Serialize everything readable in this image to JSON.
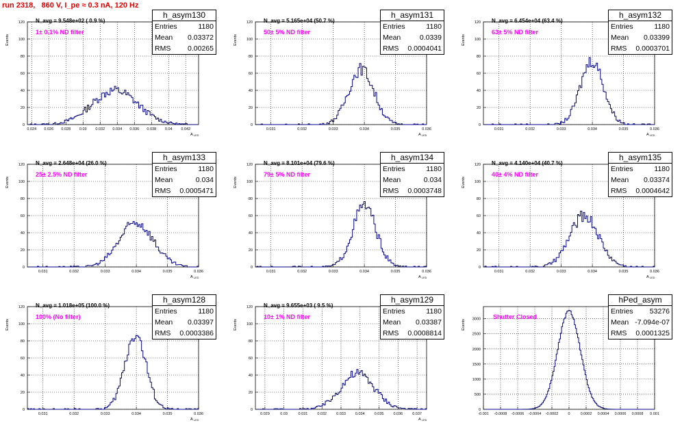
{
  "title": "run 2318,   860 V, I_pe ≈ 0.3 nA, 120 Hz",
  "colors": {
    "title": "#e00000",
    "histogram": "#000080",
    "filter_text": "#ff00ff"
  },
  "chart_data": [
    {
      "type": "histogram",
      "name": "h_asym130",
      "stats": {
        "entries_label": "Entries",
        "entries": "1180",
        "mean_label": "Mean",
        "mean": "0.03372",
        "rms_label": "RMS",
        "rms": "0.00265"
      },
      "navg": "N_avg = 9.548e+02 ( 0.9 %)",
      "filter": "1± 0.1% ND filter",
      "ylabel": "Events",
      "xlabel": "A",
      "xlabel_sub": "LED",
      "xlim": [
        0.0235,
        0.0435
      ],
      "ylim": [
        0,
        120
      ],
      "xticks": [
        "0.024",
        "0.026",
        "0.028",
        "0.03",
        "0.032",
        "0.034",
        "0.036",
        "0.038",
        "0.04",
        "0.042"
      ],
      "xtick_values": [
        0.024,
        0.026,
        0.028,
        0.03,
        0.032,
        0.034,
        0.036,
        0.038,
        0.04,
        0.042
      ],
      "yticks": [
        "0",
        "20",
        "40",
        "60",
        "80",
        "100",
        "120"
      ],
      "grid": true,
      "mean_val": 0.03372,
      "sigma": 0.00265,
      "peak": 40,
      "bins": 120
    },
    {
      "type": "histogram",
      "name": "h_asym131",
      "stats": {
        "entries_label": "Entries",
        "entries": "1180",
        "mean_label": "Mean",
        "mean": "0.0339",
        "rms_label": "RMS",
        "rms": "0.0004041"
      },
      "navg": "N_avg = 5.165e+04 (50.7 %)",
      "filter": "50± 5% ND filter",
      "ylabel": "Events",
      "xlabel": "A",
      "xlabel_sub": "LED",
      "xlim": [
        0.0305,
        0.036
      ],
      "ylim": [
        0,
        120
      ],
      "xticks": [
        "0.031",
        "0.032",
        "0.033",
        "0.034",
        "0.035",
        "0.036"
      ],
      "xtick_values": [
        0.031,
        0.032,
        0.033,
        0.034,
        0.035,
        0.036
      ],
      "yticks": [
        "0",
        "20",
        "40",
        "60",
        "80",
        "100",
        "120"
      ],
      "grid": true,
      "mean_val": 0.0339,
      "sigma": 0.000404,
      "peak": 65,
      "bins": 120
    },
    {
      "type": "histogram",
      "name": "h_asym132",
      "stats": {
        "entries_label": "Entries",
        "entries": "1180",
        "mean_label": "Mean",
        "mean": "0.03399",
        "rms_label": "RMS",
        "rms": "0.0003701"
      },
      "navg": "N_avg = 6.454e+04 (63.4 %)",
      "filter": "63± 5% ND filter",
      "ylabel": "Events",
      "xlabel": "A",
      "xlabel_sub": "LED",
      "xlim": [
        0.0305,
        0.036
      ],
      "ylim": [
        0,
        120
      ],
      "xticks": [
        "0.031",
        "0.032",
        "0.033",
        "0.034",
        "0.035",
        "0.036"
      ],
      "xtick_values": [
        0.031,
        0.032,
        0.033,
        0.034,
        0.035,
        0.036
      ],
      "yticks": [
        "0",
        "20",
        "40",
        "60",
        "80",
        "100",
        "120"
      ],
      "grid": true,
      "mean_val": 0.03399,
      "sigma": 0.00037,
      "peak": 75,
      "bins": 120
    },
    {
      "type": "histogram",
      "name": "h_asym133",
      "stats": {
        "entries_label": "Entries",
        "entries": "1180",
        "mean_label": "Mean",
        "mean": "0.034",
        "rms_label": "RMS",
        "rms": "0.0005471"
      },
      "navg": "N_avg = 2.648e+04 (26.0 %)",
      "filter": "25± 2.5% ND filter",
      "ylabel": "Events",
      "xlabel": "A",
      "xlabel_sub": "LED",
      "xlim": [
        0.0305,
        0.036
      ],
      "ylim": [
        0,
        120
      ],
      "xticks": [
        "0.031",
        "0.032",
        "0.033",
        "0.034",
        "0.035",
        "0.036"
      ],
      "xtick_values": [
        0.031,
        0.032,
        0.033,
        0.034,
        0.035,
        0.036
      ],
      "yticks": [
        "0",
        "20",
        "40",
        "60",
        "80",
        "100",
        "120"
      ],
      "grid": true,
      "mean_val": 0.034,
      "sigma": 0.000547,
      "peak": 52,
      "bins": 120
    },
    {
      "type": "histogram",
      "name": "h_asym134",
      "stats": {
        "entries_label": "Entries",
        "entries": "1180",
        "mean_label": "Mean",
        "mean": "0.034",
        "rms_label": "RMS",
        "rms": "0.0003748"
      },
      "navg": "N_avg = 8.101e+04 (79.6 %)",
      "filter": "79± 5% ND filter",
      "ylabel": "Events",
      "xlabel": "A",
      "xlabel_sub": "LED",
      "xlim": [
        0.0305,
        0.036
      ],
      "ylim": [
        0,
        120
      ],
      "xticks": [
        "0.031",
        "0.032",
        "0.033",
        "0.034",
        "0.035",
        "0.036"
      ],
      "xtick_values": [
        0.031,
        0.032,
        0.033,
        0.034,
        0.035,
        0.036
      ],
      "yticks": [
        "0",
        "20",
        "40",
        "60",
        "80",
        "100",
        "120"
      ],
      "grid": true,
      "mean_val": 0.034,
      "sigma": 0.000375,
      "peak": 72,
      "bins": 120
    },
    {
      "type": "histogram",
      "name": "h_asym135",
      "stats": {
        "entries_label": "Entries",
        "entries": "1180",
        "mean_label": "Mean",
        "mean": "0.03374",
        "rms_label": "RMS",
        "rms": "0.0004642"
      },
      "navg": "N_avg = 4.140e+04 (40.7 %)",
      "filter": "40± 4% ND filter",
      "ylabel": "Events",
      "xlabel": "A",
      "xlabel_sub": "LED",
      "xlim": [
        0.0305,
        0.036
      ],
      "ylim": [
        0,
        120
      ],
      "xticks": [
        "0.031",
        "0.032",
        "0.033",
        "0.034",
        "0.035",
        "0.036"
      ],
      "xtick_values": [
        0.031,
        0.032,
        0.033,
        0.034,
        0.035,
        0.036
      ],
      "yticks": [
        "0",
        "20",
        "40",
        "60",
        "80",
        "100",
        "120"
      ],
      "grid": true,
      "mean_val": 0.03374,
      "sigma": 0.000464,
      "peak": 60,
      "bins": 120
    },
    {
      "type": "histogram",
      "name": "h_asym128",
      "stats": {
        "entries_label": "Entries",
        "entries": "1180",
        "mean_label": "Mean",
        "mean": "0.03397",
        "rms_label": "RMS",
        "rms": "0.0003386"
      },
      "navg": "N_avg = 1.018e+05 (100.0 %)",
      "filter": "100% (No filter)",
      "ylabel": "Events",
      "xlabel": "A",
      "xlabel_sub": "LED",
      "xlim": [
        0.0305,
        0.036
      ],
      "ylim": [
        0,
        120
      ],
      "xticks": [
        "0.031",
        "0.032",
        "0.033",
        "0.034",
        "0.035",
        "0.036"
      ],
      "xtick_values": [
        0.031,
        0.032,
        0.033,
        0.034,
        0.035,
        0.036
      ],
      "yticks": [
        "0",
        "20",
        "40",
        "60",
        "80",
        "100",
        "120"
      ],
      "grid": true,
      "mean_val": 0.03397,
      "sigma": 0.000339,
      "peak": 88,
      "bins": 120
    },
    {
      "type": "histogram",
      "name": "h_asym129",
      "stats": {
        "entries_label": "Entries",
        "entries": "1180",
        "mean_label": "Mean",
        "mean": "0.03387",
        "rms_label": "RMS",
        "rms": "0.0008814"
      },
      "navg": "N_avg = 9.655e+03 ( 9.5 %)",
      "filter": "10± 1% ND filter",
      "ylabel": "Events",
      "xlabel": "A",
      "xlabel_sub": "LED",
      "xlim": [
        0.0285,
        0.0375
      ],
      "ylim": [
        0,
        120
      ],
      "xticks": [
        "0.029",
        "0.03",
        "0.031",
        "0.032",
        "0.033",
        "0.034",
        "0.035",
        "0.036",
        "0.037"
      ],
      "xtick_values": [
        0.029,
        0.03,
        0.031,
        0.032,
        0.033,
        0.034,
        0.035,
        0.036,
        0.037
      ],
      "yticks": [
        "0",
        "20",
        "40",
        "60",
        "80",
        "100",
        "120"
      ],
      "grid": true,
      "mean_val": 0.03387,
      "sigma": 0.00088,
      "peak": 42,
      "bins": 120
    },
    {
      "type": "histogram",
      "name": "hPed_asym",
      "stats": {
        "entries_label": "Entries",
        "entries": "53276",
        "mean_label": "Mean",
        "mean": "-7.094e-07",
        "rms_label": "RMS",
        "rms": "0.0001325"
      },
      "navg": "",
      "filter": "Shutter Closed",
      "ylabel": "Events",
      "xlabel": "",
      "xlabel_sub": "",
      "xlim": [
        -0.001,
        0.001
      ],
      "ylim": [
        0,
        3400
      ],
      "xticks": [
        "-0.001",
        "-0.0008",
        "-0.0006",
        "-0.0004",
        "-0.0002",
        "0",
        "0.0002",
        "0.0004",
        "0.0006",
        "0.0008",
        "0.001"
      ],
      "xtick_values": [
        -0.001,
        -0.0008,
        -0.0006,
        -0.0004,
        -0.0002,
        0,
        0.0002,
        0.0004,
        0.0006,
        0.0008,
        0.001
      ],
      "yticks": [
        "0",
        "500",
        "1000",
        "1500",
        "2000",
        "2500",
        "3000"
      ],
      "grid": true,
      "mean_val": 0,
      "sigma": 0.0001325,
      "peak": 3250,
      "bins": 160
    }
  ]
}
